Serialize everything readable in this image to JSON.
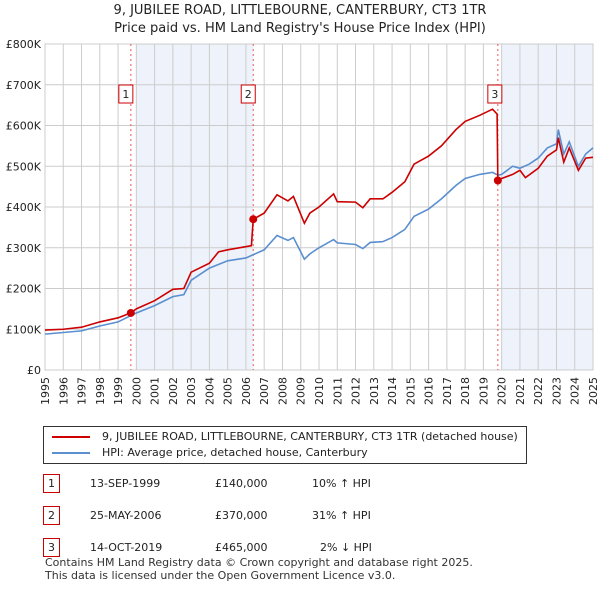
{
  "title": "9, JUBILEE ROAD, LITTLEBOURNE, CANTERBURY, CT3 1TR",
  "subtitle": "Price paid vs. HM Land Registry's House Price Index (HPI)",
  "colors": {
    "red": "#cc0000",
    "blue": "#5b8fd0",
    "shade": "#eef2fb"
  },
  "chart_data": {
    "type": "line",
    "xlim": [
      1995,
      2025
    ],
    "ylim": [
      0,
      800000
    ],
    "yticks": [
      0,
      100000,
      200000,
      300000,
      400000,
      500000,
      600000,
      700000,
      800000
    ],
    "ytick_labels": [
      "£0",
      "£100K",
      "£200K",
      "£300K",
      "£400K",
      "£500K",
      "£600K",
      "£700K",
      "£800K"
    ],
    "xtick_labels": [
      "1995",
      "1996",
      "1997",
      "1998",
      "1999",
      "2000",
      "2001",
      "2002",
      "2003",
      "2004",
      "2005",
      "2006",
      "2007",
      "2008",
      "2009",
      "2010",
      "2011",
      "2012",
      "2013",
      "2014",
      "2015",
      "2016",
      "2017",
      "2018",
      "2019",
      "2020",
      "2021",
      "2022",
      "2023",
      "2024",
      "2025"
    ],
    "shaded_ranges": [
      [
        2000,
        2006.4
      ],
      [
        2020,
        2025
      ]
    ],
    "series": [
      {
        "name": "9, JUBILEE ROAD, LITTLEBOURNE, CANTERBURY, CT3 1TR (detached house)",
        "color": "#cc0000",
        "x": [
          1995,
          1996,
          1997,
          1998,
          1999,
          1999.7,
          2000,
          2001,
          2002,
          2002.6,
          2003,
          2004,
          2004.5,
          2005,
          2006.3,
          2006.4,
          2007,
          2007.7,
          2008.3,
          2008.6,
          2009.2,
          2009.5,
          2010,
          2010.8,
          2011,
          2012,
          2012.4,
          2012.8,
          2013.5,
          2014,
          2014.7,
          2015.2,
          2016,
          2016.7,
          2017.5,
          2018,
          2018.8,
          2019.5,
          2019.75,
          2019.79,
          2020,
          2020.6,
          2021,
          2021.3,
          2022,
          2022.5,
          2023,
          2023.1,
          2023.4,
          2023.7,
          2024.2,
          2024.6,
          2025
        ],
        "y": [
          98000,
          100000,
          105000,
          118000,
          128000,
          140000,
          150000,
          170000,
          198000,
          200000,
          240000,
          262000,
          290000,
          295000,
          305000,
          370000,
          385000,
          430000,
          415000,
          426000,
          360000,
          385000,
          400000,
          432000,
          413000,
          412000,
          398000,
          420000,
          420000,
          436000,
          462000,
          505000,
          525000,
          550000,
          590000,
          610000,
          625000,
          640000,
          628000,
          465000,
          470000,
          480000,
          490000,
          472000,
          495000,
          525000,
          540000,
          570000,
          510000,
          545000,
          490000,
          520000,
          522000
        ]
      },
      {
        "name": "HPI: Average price, detached house, Canterbury",
        "color": "#5b8fd0",
        "x": [
          1995,
          1996,
          1997,
          1998,
          1999,
          2000,
          2001,
          2002,
          2002.6,
          2003,
          2004,
          2005,
          2006,
          2007,
          2007.7,
          2008.3,
          2008.6,
          2009.2,
          2009.5,
          2010,
          2010.8,
          2011,
          2012,
          2012.4,
          2012.8,
          2013.5,
          2014,
          2014.7,
          2015.2,
          2016,
          2016.7,
          2017.5,
          2018,
          2018.8,
          2019.5,
          2019.8,
          2020,
          2020.6,
          2021,
          2021.5,
          2022,
          2022.5,
          2023,
          2023.1,
          2023.4,
          2023.7,
          2024.2,
          2024.6,
          2025
        ],
        "y": [
          88000,
          92000,
          96000,
          108000,
          118000,
          140000,
          158000,
          180000,
          185000,
          220000,
          250000,
          268000,
          275000,
          295000,
          330000,
          318000,
          325000,
          272000,
          285000,
          300000,
          320000,
          312000,
          308000,
          298000,
          313000,
          315000,
          325000,
          345000,
          377000,
          395000,
          420000,
          453000,
          470000,
          480000,
          485000,
          478000,
          480000,
          500000,
          495000,
          505000,
          520000,
          545000,
          555000,
          590000,
          530000,
          560000,
          500000,
          530000,
          545000
        ]
      }
    ],
    "sales": [
      {
        "label": "1",
        "x": 1999.7,
        "y": 140000
      },
      {
        "label": "2",
        "x": 2006.4,
        "y": 370000
      },
      {
        "label": "3",
        "x": 2019.79,
        "y": 465000
      }
    ]
  },
  "legend": [
    "9, JUBILEE ROAD, LITTLEBOURNE, CANTERBURY, CT3 1TR (detached house)",
    "HPI: Average price, detached house, Canterbury"
  ],
  "table": [
    {
      "num": "1",
      "date": "13-SEP-1999",
      "price": "£140,000",
      "hpi": "10% ↑ HPI"
    },
    {
      "num": "2",
      "date": "25-MAY-2006",
      "price": "£370,000",
      "hpi": "31% ↑ HPI"
    },
    {
      "num": "3",
      "date": "14-OCT-2019",
      "price": "£465,000",
      "hpi": "2% ↓ HPI"
    }
  ],
  "footer": [
    "Contains HM Land Registry data © Crown copyright and database right 2025.",
    "This data is licensed under the Open Government Licence v3.0."
  ]
}
